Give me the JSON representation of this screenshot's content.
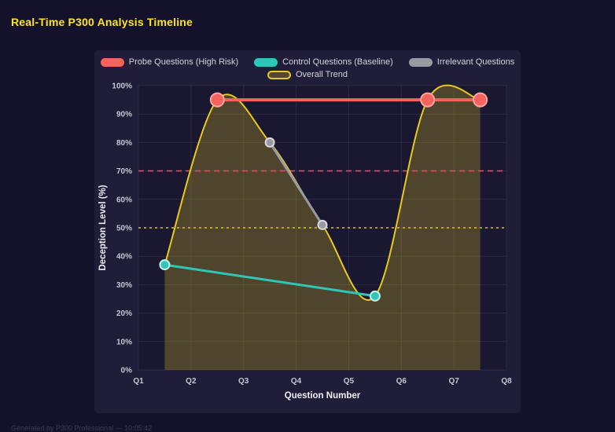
{
  "page": {
    "title": "Real-Time P300 Analysis Timeline",
    "footer": "Generated by P300 Professional — 10:05:42"
  },
  "colors": {
    "background": "#14122a",
    "panel": "#1f1d37",
    "plot_bg": "#1a1831",
    "grid": "rgba(255,255,255,0.08)",
    "tick_text": "#c6c7d6",
    "axis_title": "#eef0f8",
    "title": "#ffe227"
  },
  "chart_data": {
    "type": "line",
    "title": "Real-Time P300 Analysis Timeline",
    "xlabel": "Question Number",
    "ylabel": "Deception Level (%)",
    "xlim": [
      1,
      8
    ],
    "ylim": [
      0,
      100
    ],
    "x_ticks": [
      "Q1",
      "Q2",
      "Q3",
      "Q4",
      "Q5",
      "Q6",
      "Q7",
      "Q8"
    ],
    "y_ticks": [
      "0%",
      "10%",
      "20%",
      "30%",
      "40%",
      "50%",
      "60%",
      "70%",
      "80%",
      "90%",
      "100%"
    ],
    "grid": true,
    "legend_position": "top",
    "series": [
      {
        "key": "probe",
        "name": "Probe Questions (High Risk)",
        "color": "#f4635c",
        "marker_stroke": "#ffa3a0",
        "line_width": 4,
        "marker_radius": 8.5,
        "smooth": false,
        "points": [
          [
            2.5,
            95
          ],
          [
            6.5,
            95
          ],
          [
            7.5,
            95
          ]
        ]
      },
      {
        "key": "control",
        "name": "Control Questions (Baseline)",
        "color": "#2fc6b8",
        "marker_stroke": "#c8efeb",
        "line_width": 3,
        "marker_radius": 6,
        "smooth": false,
        "points": [
          [
            1.5,
            37
          ],
          [
            5.5,
            26
          ]
        ]
      },
      {
        "key": "irrelevant",
        "name": "Irrelevant Questions",
        "color": "#9a9aa4",
        "marker_stroke": "#d8d8de",
        "line_width": 3,
        "marker_radius": 5.5,
        "smooth": false,
        "points": [
          [
            3.5,
            80
          ],
          [
            4.5,
            51
          ]
        ]
      },
      {
        "key": "trend",
        "name": "Overall Trend",
        "color": "#e9c81f",
        "marker_stroke": "#e9c81f",
        "line_width": 2,
        "marker_radius": 0,
        "smooth": true,
        "fill": "rgba(233,200,31,0.26)",
        "points": [
          [
            1.5,
            37
          ],
          [
            2.5,
            95
          ],
          [
            3.5,
            80
          ],
          [
            4.5,
            51
          ],
          [
            5.5,
            26
          ],
          [
            6.5,
            95
          ],
          [
            7.5,
            95
          ]
        ]
      }
    ],
    "reference_lines": [
      {
        "y": 70,
        "color": "#f23f6d",
        "dash": [
          7,
          5
        ],
        "width": 1.6
      },
      {
        "y": 50,
        "color": "#dfc31d",
        "dash": [
          3,
          4
        ],
        "width": 1.6
      }
    ]
  }
}
